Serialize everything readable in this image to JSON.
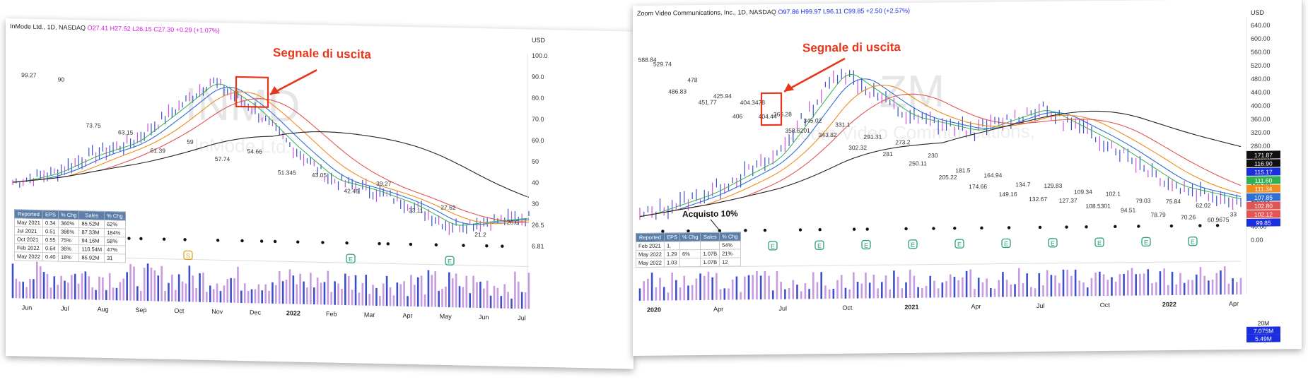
{
  "left": {
    "header": {
      "name": "InMode Ltd., 1D, NASDAQ",
      "o": "O27.41",
      "h": "H27.52",
      "l": "L26.15",
      "c": "C27.30",
      "chg": "+0.29 (+1.07%)"
    },
    "annotation": "Segnale di uscita",
    "usd_label": "USD",
    "price_ticks": [
      "100.0",
      "90.0",
      "80.0",
      "70.0",
      "60.0",
      "50",
      "40",
      "30",
      "26.5",
      "6.81"
    ],
    "price_labels": [
      "99.27",
      "90",
      "73.75",
      "63.15",
      "61.39",
      "59",
      "57.74",
      "54.66",
      "51.345",
      "43.05",
      "42.46",
      "39.27",
      "33.11",
      "27.62",
      "21.2",
      "20.6"
    ],
    "months": [
      "Jun",
      "Jul",
      "Aug",
      "Sep",
      "Oct",
      "Nov",
      "Dec",
      "2022",
      "Feb",
      "Mar",
      "Apr",
      "May",
      "Jun",
      "Jul"
    ],
    "table": {
      "headers": [
        "Reported",
        "EPS",
        "% Chg",
        "Sales",
        "% Chg"
      ],
      "rows": [
        [
          "May 2021",
          "0.34",
          "360%",
          "85.52M",
          "62%"
        ],
        [
          "Jul 2021",
          "0.51",
          "386%",
          "87.33M",
          "184%"
        ],
        [
          "Oct 2021",
          "0.55",
          "75%",
          "94.16M",
          "58%"
        ],
        [
          "Feb 2022",
          "0.64",
          "36%",
          "110.54M",
          "47%"
        ],
        [
          "May 2022",
          "0.40",
          "18%",
          "85.92M",
          "31"
        ]
      ]
    },
    "badges": [
      "S",
      "E",
      "E",
      "E"
    ],
    "watermark": "INMD",
    "watermark2": "InMode Ltd."
  },
  "right": {
    "header": {
      "name": "Zoom Video Communications, Inc., 1D, NASDAQ",
      "o": "O97.86",
      "h": "H99.97",
      "l": "L96.11",
      "c": "C99.85",
      "chg": "+2.50 (+2.57%)"
    },
    "annotation": "Segnale di uscita",
    "annotation2": "Acquisto 10%",
    "usd_label": "USD",
    "price_ticks": [
      "640.00",
      "600.00",
      "560.00",
      "520.00",
      "480.00",
      "440.00",
      "400.00",
      "360.00",
      "320.00",
      "280.00",
      "240.00",
      "200.00",
      "160.00",
      "120.00",
      "80.00",
      "40.00",
      "0.00"
    ],
    "price_tags": [
      "171.87",
      "116.90",
      "115.17",
      "111.60",
      "111.34",
      "107.85",
      "102.80",
      "102.12",
      "99.85"
    ],
    "price_labels": [
      "588.84",
      "529.74",
      "486.83",
      "478",
      "451.77",
      "425.94",
      "406",
      "404.3478",
      "404.44",
      "366.28",
      "358.6201",
      "345.02",
      "343.82",
      "331.1",
      "302.32",
      "291.31",
      "281",
      "273.2",
      "250.11",
      "230",
      "205.22",
      "181.5",
      "174.66",
      "164.94",
      "149.16",
      "134.7",
      "132.67",
      "129.83",
      "127.37",
      "109.34",
      "108.5301",
      "102.1",
      "94.51",
      "79.03",
      "78.79",
      "75.84",
      "70.26",
      "62.02",
      "60.9675",
      "33"
    ],
    "months": [
      "2020",
      "Apr",
      "Jul",
      "Oct",
      "2021",
      "Apr",
      "Jul",
      "Oct",
      "2022",
      "Apr"
    ],
    "vol_labels": [
      "20M",
      "7.075M",
      "5.49M"
    ],
    "table": {
      "headers": [
        "Reported",
        "EPS",
        "% Chg",
        "Sales",
        "% Chg"
      ],
      "rows": [
        [
          "Feb 2021",
          "1.",
          "",
          "",
          "54%"
        ],
        [
          "May 2022",
          "1.29",
          "6%",
          "1.07B",
          "21%"
        ],
        [
          "May 2022",
          "1.03",
          "",
          "1.07B",
          "12"
        ]
      ]
    },
    "watermark": "ZM",
    "watermark2": "Zoom Video Communications,"
  },
  "colors": {
    "arrow": "#e8361c",
    "ma_blue": "#2f6fd6",
    "ma_orange": "#f08c1e",
    "ma_red": "#e25555",
    "ma_green": "#30b050",
    "ma_black": "#222222",
    "candle_blue": "#3e50c8",
    "candle_pink": "#d44fd8",
    "volume": "#c89ae0"
  },
  "chart_data": [
    {
      "type": "line",
      "title": "InMode Ltd., 1D, NASDAQ",
      "x": [
        "Jun",
        "Jul",
        "Aug",
        "Sep",
        "Oct",
        "Nov",
        "Dec",
        "2022",
        "Feb",
        "Mar",
        "Apr",
        "May",
        "Jun",
        "Jul"
      ],
      "series": [
        {
          "values": [
            40,
            45,
            55,
            62,
            78,
            95,
            82,
            62,
            45,
            40,
            33,
            22,
            25,
            27.3
          ]
        }
      ],
      "ylim": [
        15,
        105
      ]
    },
    {
      "type": "line",
      "title": "Zoom Video Communications, Inc., 1D, NASDAQ",
      "x": [
        "2020",
        "Apr",
        "Jul",
        "Oct",
        "2021",
        "Apr",
        "Jul",
        "Oct",
        "2022",
        "Apr"
      ],
      "series": [
        {
          "values": [
            70,
            140,
            250,
            530,
            380,
            330,
            400,
            290,
            150,
            100
          ]
        }
      ],
      "ylim": [
        0,
        640
      ]
    }
  ]
}
